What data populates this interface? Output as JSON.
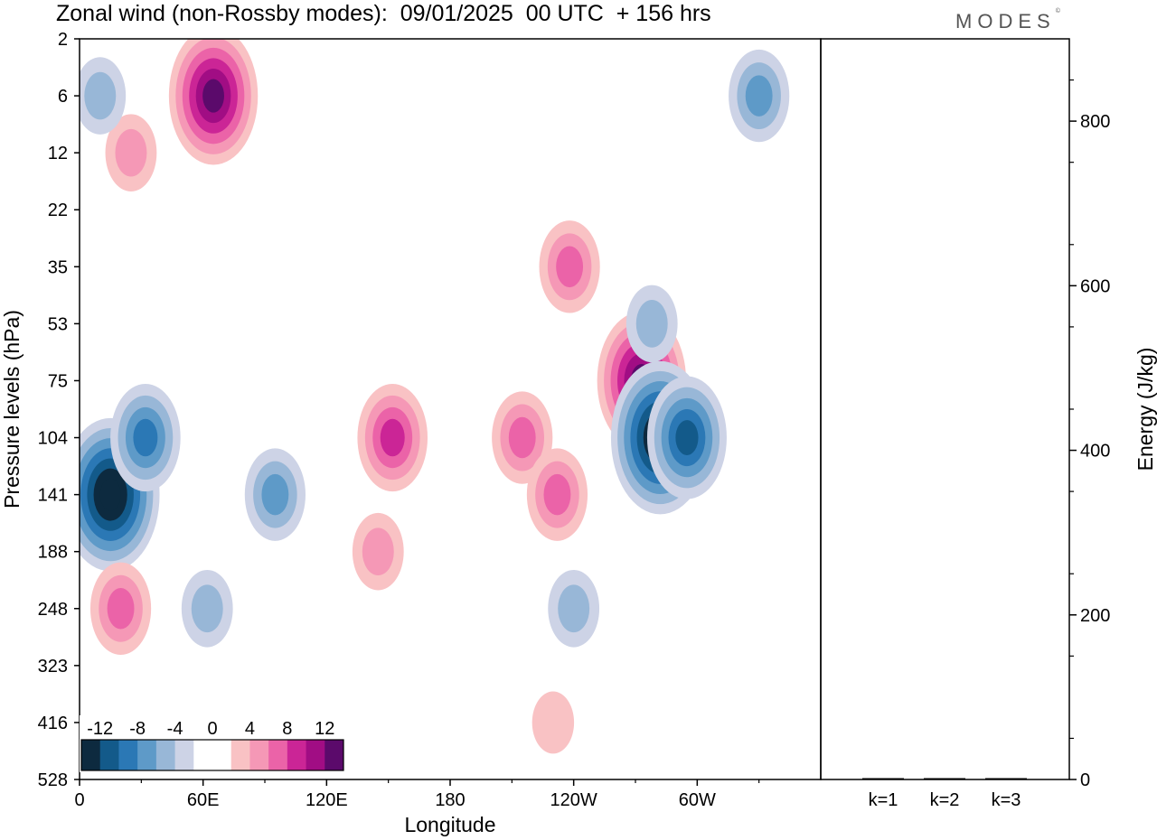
{
  "header": {
    "title": "Zonal wind (non-Rossby modes):  09/01/2025  00 UTC  + 156 hrs",
    "brand": "MODES",
    "brand_mark": "©"
  },
  "colors": {
    "negative": [
      "#0d2a3f",
      "#135a8a",
      "#2b78b5",
      "#5e9ac8",
      "#98b7d7",
      "#cdd3e6"
    ],
    "neutral": "#ffffff",
    "positive": [
      "#f9c2c4",
      "#f598b6",
      "#eb63a8",
      "#cb2596",
      "#a10d84",
      "#5b0a6b"
    ],
    "frame": "#000000"
  },
  "chart_data": [
    {
      "type": "heatmap",
      "title": "Zonal wind (non-Rossby modes):  09/01/2025  00 UTC  + 156 hrs",
      "xlabel": "Longitude",
      "ylabel": "Pressure levels (hPa)",
      "x_ticks": [
        "0",
        "60E",
        "120E",
        "180",
        "120W",
        "60W"
      ],
      "x_tick_degrees": [
        0,
        60,
        120,
        180,
        240,
        300
      ],
      "xlim": [
        0,
        360
      ],
      "y_ticks": [
        "2",
        "6",
        "12",
        "22",
        "35",
        "53",
        "75",
        "104",
        "141",
        "188",
        "248",
        "323",
        "416",
        "528"
      ],
      "colorbar": {
        "labels": [
          "-12",
          "-8",
          "-4",
          "0",
          "4",
          "8",
          "12"
        ],
        "levels": [
          -14,
          -12,
          -10,
          -8,
          -6,
          -4,
          -2,
          2,
          4,
          6,
          8,
          10,
          12,
          14
        ]
      },
      "features": [
        {
          "lon": 15,
          "level": "141",
          "value": -14
        },
        {
          "lon": 32,
          "level": "104",
          "value": -8
        },
        {
          "lon": 65,
          "level": "6",
          "value": 12
        },
        {
          "lon": 95,
          "level": "141",
          "value": -6
        },
        {
          "lon": 152,
          "level": "104",
          "value": 8
        },
        {
          "lon": 215,
          "level": "104",
          "value": 6
        },
        {
          "lon": 232,
          "level": "141",
          "value": 6
        },
        {
          "lon": 273,
          "level": "75",
          "value": 12
        },
        {
          "lon": 282,
          "level": "104",
          "value": -14
        },
        {
          "lon": 295,
          "level": "104",
          "value": -10
        },
        {
          "lon": 278,
          "level": "53",
          "value": -4
        },
        {
          "lon": 20,
          "level": "248",
          "value": 6
        },
        {
          "lon": 62,
          "level": "248",
          "value": -4
        },
        {
          "lon": 240,
          "level": "248",
          "value": -4
        },
        {
          "lon": 145,
          "level": "188",
          "value": 4
        },
        {
          "lon": 25,
          "level": "12",
          "value": 4
        },
        {
          "lon": 330,
          "level": "6",
          "value": -6
        },
        {
          "lon": 238,
          "level": "35",
          "value": 6
        },
        {
          "lon": 230,
          "level": "416",
          "value": 2
        },
        {
          "lon": 10,
          "level": "6",
          "value": -4
        }
      ]
    },
    {
      "type": "bar",
      "ylabel": "Energy (J/kg)",
      "categories": [
        "k=1",
        "k=2",
        "k=3"
      ],
      "values": [
        1,
        1,
        1
      ],
      "ylim": [
        0,
        900
      ],
      "y_ticks": [
        "0",
        "200",
        "400",
        "600",
        "800"
      ],
      "y_tick_values": [
        0,
        200,
        400,
        600,
        800
      ]
    }
  ]
}
